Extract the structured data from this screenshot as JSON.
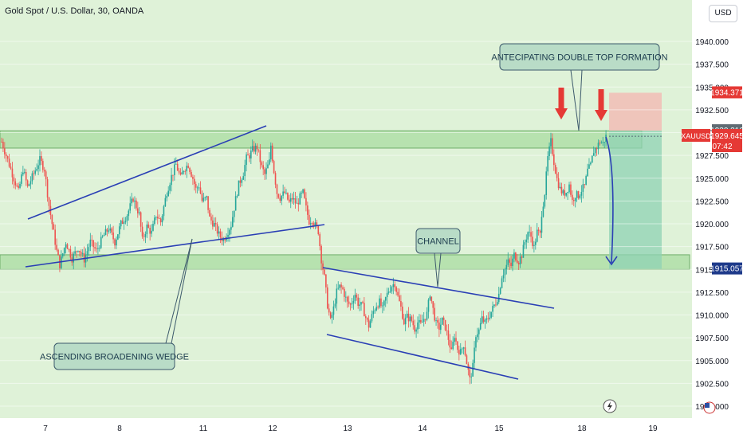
{
  "header": {
    "title": "Gold Spot / U.S. Dollar, 30, OANDA",
    "currency": "USD"
  },
  "colors": {
    "background_green": "#dff2d8",
    "zone_green": "#a9dca1",
    "line_blue": "#2a3fb5",
    "bull": "#26a69a",
    "bear": "#ef5350",
    "arrow_red": "#e53935",
    "target_green": "#8fd1b4",
    "stop_red": "#f2b9b4"
  },
  "chart_data": {
    "type": "candlestick",
    "y_range": [
      1900,
      1942
    ],
    "y_ticks": [
      "1940.000",
      "1937.500",
      "1935.000",
      "1932.500",
      "1930.000",
      "1927.500",
      "1925.000",
      "1922.500",
      "1920.000",
      "1917.500",
      "1915.000",
      "1912.500",
      "1910.000",
      "1907.500",
      "1905.000",
      "1902.500",
      "1900.000"
    ],
    "x_ticks": [
      "7",
      "8",
      "11",
      "12",
      "13",
      "14",
      "15",
      "18",
      "19"
    ],
    "price_labels": {
      "stop": "1934.371",
      "entry": "1930.216",
      "symbol": "XAUUSD",
      "last": "1929.645",
      "countdown": "07:42",
      "target": "1915.057"
    },
    "annotations": {
      "double_top": "ANTECIPATING DOUBLE TOP FORMATION",
      "channel": "CHANNEL",
      "wedge": "ASCENDING BROADENING WEDGE"
    },
    "zones": [
      {
        "name": "resistance",
        "from": 1928.3,
        "to": 1930.2
      },
      {
        "name": "support",
        "from": 1915.0,
        "to": 1916.6
      }
    ],
    "price_path": [
      [
        0,
        1929
      ],
      [
        4,
        1927
      ],
      [
        8,
        1925
      ],
      [
        11,
        1923.5
      ],
      [
        14,
        1926
      ],
      [
        17,
        1924
      ],
      [
        21,
        1925.5
      ],
      [
        25,
        1927
      ],
      [
        28,
        1926
      ],
      [
        31,
        1922
      ],
      [
        34,
        1919
      ],
      [
        36,
        1917
      ],
      [
        38,
        1915.5
      ],
      [
        42,
        1918
      ],
      [
        46,
        1916.2
      ],
      [
        50,
        1917.4
      ],
      [
        54,
        1916.1
      ],
      [
        58,
        1918
      ],
      [
        62,
        1917
      ],
      [
        66,
        1918.5
      ],
      [
        70,
        1919.5
      ],
      [
        74,
        1918
      ],
      [
        78,
        1920
      ],
      [
        82,
        1921
      ],
      [
        86,
        1922.8
      ],
      [
        90,
        1921
      ],
      [
        92,
        1918.2
      ],
      [
        95,
        1919.7
      ],
      [
        98,
        1919
      ],
      [
        101,
        1921
      ],
      [
        104,
        1920.2
      ],
      [
        108,
        1923.5
      ],
      [
        111,
        1925.2
      ],
      [
        114,
        1926.5
      ],
      [
        117,
        1925
      ],
      [
        119,
        1926
      ],
      [
        122,
        1926.5
      ],
      [
        125,
        1925
      ],
      [
        127,
        1923.8
      ],
      [
        129,
        1924.2
      ],
      [
        131,
        1922.5
      ],
      [
        134,
        1922.8
      ],
      [
        136,
        1920.6
      ],
      [
        139,
        1919.9
      ],
      [
        142,
        1918.8
      ],
      [
        145,
        1918.2
      ],
      [
        147,
        1918.9
      ],
      [
        150,
        1919.9
      ],
      [
        153,
        1922.7
      ],
      [
        155,
        1924.3
      ],
      [
        158,
        1925.6
      ],
      [
        160,
        1927.2
      ],
      [
        162,
        1927.5
      ],
      [
        164,
        1928.1
      ],
      [
        167,
        1928.4
      ],
      [
        170,
        1926.2
      ],
      [
        172,
        1925.4
      ],
      [
        175,
        1926.8
      ],
      [
        176,
        1928.6
      ],
      [
        178,
        1925.8
      ],
      [
        180,
        1923.4
      ],
      [
        182,
        1922.9
      ],
      [
        185,
        1923.4
      ],
      [
        188,
        1922.3
      ],
      [
        190,
        1922.8
      ],
      [
        193,
        1922.1
      ],
      [
        195,
        1922.9
      ],
      [
        197,
        1923.4
      ],
      [
        199,
        1921.7
      ],
      [
        201,
        1920.3
      ],
      [
        203,
        1920.5
      ],
      [
        205,
        1919.8
      ],
      [
        207,
        1919.2
      ],
      [
        209,
        1916.1
      ],
      [
        211,
        1914.1
      ],
      [
        213,
        1911.1
      ],
      [
        215,
        1909.3
      ],
      [
        217,
        1910.7
      ],
      [
        219,
        1912.5
      ],
      [
        221,
        1913.1
      ],
      [
        223,
        1912.8
      ],
      [
        226,
        1911.3
      ],
      [
        228,
        1911.1
      ],
      [
        231,
        1912.3
      ],
      [
        233,
        1911.3
      ],
      [
        236,
        1910.9
      ],
      [
        238,
        1909.7
      ],
      [
        240,
        1908.8
      ],
      [
        243,
        1910.4
      ],
      [
        245,
        1911.1
      ],
      [
        247,
        1911.4
      ],
      [
        249,
        1910.6
      ],
      [
        251,
        1911.8
      ],
      [
        253,
        1912.7
      ],
      [
        255,
        1913.2
      ],
      [
        257,
        1913.5
      ],
      [
        259,
        1912.0
      ],
      [
        261,
        1910.8
      ],
      [
        263,
        1909.2
      ],
      [
        265,
        1909.8
      ],
      [
        268,
        1909.4
      ],
      [
        270,
        1908.5
      ],
      [
        272,
        1909.2
      ],
      [
        274,
        1908.9
      ],
      [
        276,
        1909.6
      ],
      [
        278,
        1910.1
      ],
      [
        280,
        1912.4
      ],
      [
        282,
        1910.6
      ],
      [
        284,
        1909.0
      ],
      [
        286,
        1908.6
      ],
      [
        288,
        1909.4
      ],
      [
        290,
        1908.7
      ],
      [
        292,
        1907.4
      ],
      [
        294,
        1905.9
      ],
      [
        296,
        1907.8
      ],
      [
        298,
        1906.3
      ],
      [
        300,
        1905.9
      ],
      [
        302,
        1906.8
      ],
      [
        304,
        1904.8
      ],
      [
        306,
        1902.9
      ],
      [
        308,
        1904.3
      ],
      [
        310,
        1907.9
      ],
      [
        312,
        1908.3
      ],
      [
        314,
        1909.6
      ],
      [
        316,
        1909.1
      ],
      [
        318,
        1909.7
      ],
      [
        321,
        1910.7
      ],
      [
        323,
        1911.4
      ],
      [
        325,
        1912.3
      ],
      [
        327,
        1914.3
      ],
      [
        329,
        1915.0
      ],
      [
        331,
        1915.8
      ],
      [
        333,
        1915.4
      ],
      [
        335,
        1916.6
      ],
      [
        338,
        1915.9
      ],
      [
        340,
        1916.6
      ],
      [
        342,
        1918.0
      ],
      [
        344,
        1919.1
      ],
      [
        346,
        1918.6
      ],
      [
        348,
        1917.4
      ],
      [
        350,
        1919.1
      ],
      [
        352,
        1918.8
      ],
      [
        353,
        1921.2
      ],
      [
        355,
        1923.4
      ],
      [
        357,
        1927.2
      ],
      [
        359,
        1929.0
      ],
      [
        361,
        1926.8
      ],
      [
        363,
        1924.9
      ],
      [
        365,
        1923.8
      ],
      [
        367,
        1923.3
      ],
      [
        369,
        1923.5
      ],
      [
        371,
        1924.3
      ],
      [
        373,
        1922.5
      ],
      [
        375,
        1923.2
      ],
      [
        377,
        1923.1
      ],
      [
        379,
        1923.7
      ],
      [
        381,
        1924.1
      ],
      [
        383,
        1925.8
      ],
      [
        385,
        1926.4
      ],
      [
        387,
        1928.0
      ],
      [
        389,
        1928.4
      ],
      [
        391,
        1929.0
      ],
      [
        393,
        1928.8
      ],
      [
        395,
        1929.6
      ]
    ]
  }
}
